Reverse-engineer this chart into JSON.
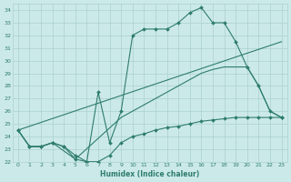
{
  "xlabel": "Humidex (Indice chaleur)",
  "bg_color": "#cce9e9",
  "grid_color": "#aad0d0",
  "line_color": "#2e7d6e",
  "xlim": [
    -0.5,
    23.5
  ],
  "ylim": [
    22,
    34.5
  ],
  "xticks": [
    0,
    1,
    2,
    3,
    4,
    5,
    6,
    7,
    8,
    9,
    10,
    11,
    12,
    13,
    14,
    15,
    16,
    17,
    18,
    19,
    20,
    21,
    22,
    23
  ],
  "yticks": [
    22,
    23,
    24,
    25,
    26,
    27,
    28,
    29,
    30,
    31,
    32,
    33,
    34
  ],
  "series": [
    {
      "x": [
        0,
        1,
        2,
        3,
        4,
        5,
        6,
        7,
        8,
        9,
        10,
        11,
        12,
        13,
        14,
        15,
        16,
        17,
        18,
        19,
        20,
        21,
        22,
        23
      ],
      "y": [
        24.5,
        23.2,
        23.2,
        23.5,
        23.2,
        22.2,
        22.0,
        27.5,
        23.5,
        26.0,
        32.0,
        32.5,
        32.5,
        32.5,
        33.0,
        33.8,
        34.2,
        33.0,
        33.0,
        31.5,
        29.5,
        28.0,
        26.0,
        25.5
      ],
      "marker": "D",
      "markersize": 2.0,
      "linewidth": 0.8,
      "has_markers": true
    },
    {
      "x": [
        0,
        1,
        2,
        3,
        5,
        9,
        10,
        11,
        12,
        13,
        14,
        15,
        16,
        17,
        18,
        19,
        20,
        21,
        22,
        23
      ],
      "y": [
        24.5,
        23.2,
        23.2,
        23.5,
        22.2,
        25.5,
        26.0,
        26.5,
        27.0,
        27.5,
        28.0,
        28.5,
        29.0,
        29.3,
        29.5,
        29.5,
        29.5,
        28.0,
        26.0,
        25.5
      ],
      "marker": null,
      "markersize": 0,
      "linewidth": 0.8,
      "has_markers": false
    },
    {
      "x": [
        0,
        1,
        2,
        3,
        4,
        5,
        6,
        7,
        8,
        9,
        10,
        11,
        12,
        13,
        14,
        15,
        16,
        17,
        18,
        19,
        20,
        21,
        22,
        23
      ],
      "y": [
        24.5,
        23.2,
        23.2,
        23.5,
        23.2,
        22.5,
        22.0,
        22.0,
        22.5,
        23.5,
        24.0,
        24.2,
        24.5,
        24.7,
        24.8,
        25.0,
        25.2,
        25.3,
        25.4,
        25.5,
        25.5,
        25.5,
        25.5,
        25.5
      ],
      "marker": "D",
      "markersize": 2.0,
      "linewidth": 0.8,
      "has_markers": true
    },
    {
      "x": [
        0,
        23
      ],
      "y": [
        24.5,
        31.5
      ],
      "marker": null,
      "markersize": 0,
      "linewidth": 0.8,
      "has_markers": false
    }
  ]
}
